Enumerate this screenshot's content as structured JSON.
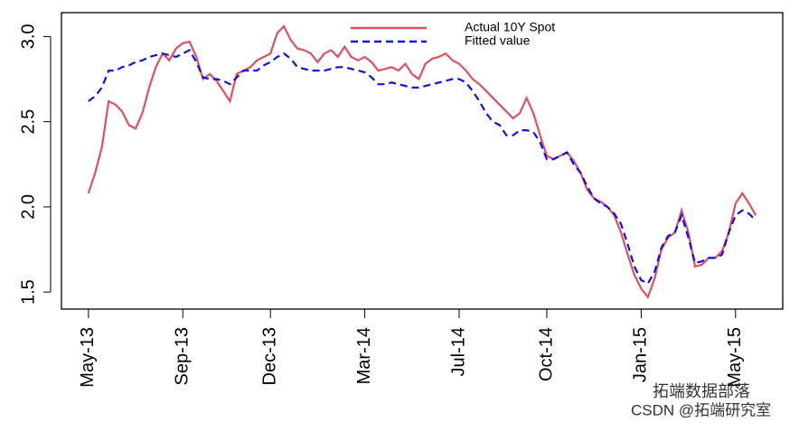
{
  "chart_data": {
    "type": "line",
    "categories": [
      "May-13",
      null,
      null,
      null,
      null,
      null,
      null,
      null,
      null,
      null,
      null,
      null,
      null,
      null,
      "Sep-13",
      null,
      null,
      null,
      null,
      null,
      null,
      null,
      null,
      null,
      null,
      null,
      null,
      "Dec-13",
      null,
      null,
      null,
      null,
      null,
      null,
      null,
      null,
      null,
      null,
      null,
      null,
      null,
      "Mar-14",
      null,
      null,
      null,
      null,
      null,
      null,
      null,
      null,
      null,
      null,
      null,
      null,
      null,
      "Jul-14",
      null,
      null,
      null,
      null,
      null,
      null,
      null,
      null,
      null,
      null,
      null,
      null,
      "Oct-14",
      null,
      null,
      null,
      null,
      null,
      null,
      null,
      null,
      null,
      null,
      null,
      null,
      null,
      "Jan-15",
      null,
      null,
      null,
      null,
      null,
      null,
      null,
      null,
      null,
      null,
      null,
      null,
      null,
      "May-15",
      null,
      null,
      null
    ],
    "series": [
      {
        "name": "Actual 10Y Spot",
        "color": "#e0505f",
        "dash": false,
        "values": [
          2.08,
          2.2,
          2.35,
          2.62,
          2.6,
          2.56,
          2.48,
          2.46,
          2.55,
          2.7,
          2.82,
          2.9,
          2.86,
          2.93,
          2.96,
          2.97,
          2.88,
          2.75,
          2.78,
          2.74,
          2.68,
          2.62,
          2.78,
          2.8,
          2.82,
          2.86,
          2.88,
          2.9,
          3.02,
          3.06,
          2.98,
          2.93,
          2.92,
          2.9,
          2.85,
          2.9,
          2.92,
          2.88,
          2.94,
          2.88,
          2.86,
          2.88,
          2.85,
          2.8,
          2.81,
          2.82,
          2.8,
          2.84,
          2.78,
          2.75,
          2.84,
          2.87,
          2.88,
          2.9,
          2.86,
          2.84,
          2.8,
          2.75,
          2.72,
          2.68,
          2.64,
          2.6,
          2.56,
          2.52,
          2.55,
          2.64,
          2.55,
          2.42,
          2.3,
          2.28,
          2.3,
          2.32,
          2.27,
          2.2,
          2.1,
          2.05,
          2.03,
          2.0,
          1.95,
          1.85,
          1.72,
          1.6,
          1.52,
          1.47,
          1.58,
          1.75,
          1.82,
          1.85,
          1.98,
          1.85,
          1.65,
          1.66,
          1.7,
          1.7,
          1.74,
          1.85,
          2.02,
          2.08,
          2.02,
          1.95
        ]
      },
      {
        "name": "Fitted value",
        "color": "#1010e8",
        "dash": true,
        "values": [
          2.62,
          2.65,
          2.7,
          2.8,
          2.8,
          2.82,
          2.83,
          2.85,
          2.86,
          2.88,
          2.89,
          2.9,
          2.89,
          2.88,
          2.9,
          2.92,
          2.85,
          2.76,
          2.75,
          2.75,
          2.74,
          2.72,
          2.76,
          2.8,
          2.8,
          2.8,
          2.83,
          2.85,
          2.88,
          2.9,
          2.87,
          2.82,
          2.81,
          2.8,
          2.8,
          2.8,
          2.81,
          2.82,
          2.82,
          2.81,
          2.8,
          2.79,
          2.76,
          2.72,
          2.72,
          2.73,
          2.72,
          2.71,
          2.7,
          2.7,
          2.71,
          2.72,
          2.73,
          2.74,
          2.75,
          2.75,
          2.73,
          2.68,
          2.62,
          2.55,
          2.5,
          2.48,
          2.42,
          2.42,
          2.45,
          2.45,
          2.44,
          2.38,
          2.28,
          2.28,
          2.3,
          2.32,
          2.25,
          2.2,
          2.12,
          2.05,
          2.02,
          2.0,
          1.96,
          1.9,
          1.78,
          1.65,
          1.57,
          1.55,
          1.62,
          1.76,
          1.83,
          1.85,
          1.95,
          1.82,
          1.67,
          1.68,
          1.7,
          1.7,
          1.72,
          1.85,
          1.95,
          1.98,
          1.96,
          1.92
        ]
      }
    ],
    "ylim": [
      1.4,
      3.14
    ],
    "yticks": [
      1.5,
      {
        "value": 2,
        "label": "2.0"
      },
      2.5,
      {
        "value": 3,
        "label": "3.0"
      }
    ],
    "legend": "top",
    "grid": false,
    "watermark": [
      "拓端数据部落",
      "CSDN @拓端研究室"
    ]
  }
}
